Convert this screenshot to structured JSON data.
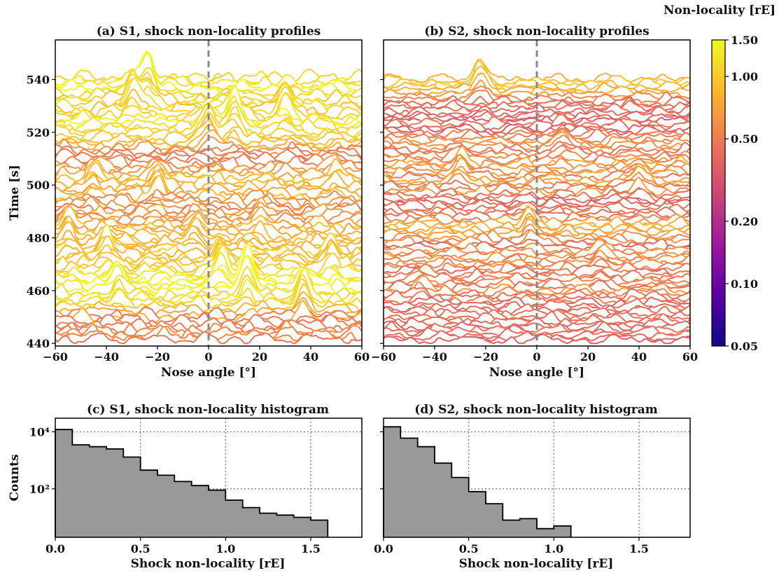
{
  "colorbar": {
    "label": "Non-locality [rE]",
    "ticks": [
      0.05,
      0.1,
      0.2,
      0.5,
      1.0,
      1.5
    ],
    "tick_labels": [
      "0.05",
      "0.10",
      "0.20",
      "0.50",
      "1.00",
      "1.50"
    ],
    "colormap": [
      "#0d0887",
      "#5c01a6",
      "#9c179e",
      "#cc4778",
      "#ed7953",
      "#fdb42f",
      "#f0f921"
    ]
  },
  "chart_data": [
    {
      "type": "line",
      "title": "(a) S1, shock non-locality profiles",
      "xlabel": "Nose angle [°]",
      "ylabel": "Time [s]",
      "xlim": [
        -60,
        60
      ],
      "ylim": [
        439,
        555
      ],
      "xticks": [
        -60,
        -40,
        -20,
        0,
        20,
        40,
        60
      ],
      "xtick_labels": [
        "−60",
        "−40",
        "−20",
        "0",
        "20",
        "40",
        "60"
      ],
      "yticks": [
        440,
        460,
        480,
        500,
        520,
        540
      ],
      "ytick_labels": [
        "440",
        "460",
        "480",
        "500",
        "520",
        "540"
      ],
      "time_range": [
        440,
        539
      ],
      "time_step": 1,
      "reference_line_x": 0,
      "peaks": [
        {
          "x": -24,
          "t": 535,
          "amp": 1.3
        },
        {
          "x": -30,
          "t": 530,
          "amp": 1.0
        },
        {
          "x": 10,
          "t": 522,
          "amp": 1.2
        },
        {
          "x": 30,
          "t": 525,
          "amp": 0.9
        },
        {
          "x": 0,
          "t": 518,
          "amp": 1.0
        },
        {
          "x": -45,
          "t": 500,
          "amp": 0.6
        },
        {
          "x": -20,
          "t": 497,
          "amp": 0.7
        },
        {
          "x": -5,
          "t": 480,
          "amp": 0.6
        },
        {
          "x": 20,
          "t": 485,
          "amp": 0.5
        },
        {
          "x": -40,
          "t": 472,
          "amp": 0.8
        },
        {
          "x": 5,
          "t": 465,
          "amp": 1.0
        },
        {
          "x": 15,
          "t": 460,
          "amp": 1.4
        },
        {
          "x": 37,
          "t": 455,
          "amp": 1.1
        },
        {
          "x": -55,
          "t": 480,
          "amp": 0.7
        },
        {
          "x": 50,
          "t": 502,
          "amp": 0.5
        },
        {
          "x": -35,
          "t": 458,
          "amp": 0.8
        },
        {
          "x": 48,
          "t": 470,
          "amp": 0.6
        }
      ]
    },
    {
      "type": "line",
      "title": "(b) S2, shock non-locality profiles",
      "xlabel": "Nose angle [°]",
      "ylabel": "",
      "xlim": [
        -60,
        60
      ],
      "ylim": [
        439,
        555
      ],
      "xticks": [
        -60,
        -40,
        -20,
        0,
        20,
        40,
        60
      ],
      "xtick_labels": [
        "−60",
        "−40",
        "−20",
        "0",
        "20",
        "40",
        "60"
      ],
      "yticks": [
        440,
        460,
        480,
        500,
        520,
        540
      ],
      "time_range": [
        440,
        539
      ],
      "time_step": 1,
      "reference_line_x": 0,
      "peaks": [
        {
          "x": -22,
          "t": 537,
          "amp": 0.8
        },
        {
          "x": -3,
          "t": 482,
          "amp": 0.7
        },
        {
          "x": 40,
          "t": 500,
          "amp": 0.5
        },
        {
          "x": -30,
          "t": 505,
          "amp": 0.5
        },
        {
          "x": 25,
          "t": 470,
          "amp": 0.5
        },
        {
          "x": 10,
          "t": 515,
          "amp": 0.4
        },
        {
          "x": -45,
          "t": 460,
          "amp": 0.4
        }
      ]
    },
    {
      "type": "bar",
      "title": "(c) S1, shock non-locality histogram",
      "xlabel": "Shock non-locality [rE]",
      "ylabel": "Counts",
      "log_y": true,
      "grid": true,
      "xlim": [
        0,
        1.8
      ],
      "ylim": [
        2,
        30000
      ],
      "bin_width": 0.1,
      "bin_edges_start": 0.0,
      "values": [
        12000,
        3500,
        3000,
        2500,
        1300,
        450,
        300,
        180,
        130,
        90,
        40,
        22,
        14,
        12,
        10,
        8
      ],
      "xticks": [
        0.0,
        0.5,
        1.0,
        1.5
      ],
      "xtick_labels": [
        "0.0",
        "0.5",
        "1.0",
        "1.5"
      ],
      "yticks": [
        100,
        10000
      ],
      "ytick_labels": [
        "10²",
        "10⁴"
      ]
    },
    {
      "type": "bar",
      "title": "(d) S2, shock non-locality histogram",
      "xlabel": "Shock non-locality [rE]",
      "ylabel": "",
      "log_y": true,
      "grid": true,
      "xlim": [
        0,
        1.8
      ],
      "ylim": [
        2,
        30000
      ],
      "bin_width": 0.1,
      "bin_edges_start": 0.0,
      "values": [
        15000,
        6000,
        3000,
        800,
        250,
        80,
        30,
        8,
        9,
        4,
        5
      ],
      "xticks": [
        0.0,
        0.5,
        1.0,
        1.5
      ],
      "xtick_labels": [
        "0.0",
        "0.5",
        "1.0",
        "1.5"
      ],
      "yticks": [
        100,
        10000
      ]
    }
  ]
}
